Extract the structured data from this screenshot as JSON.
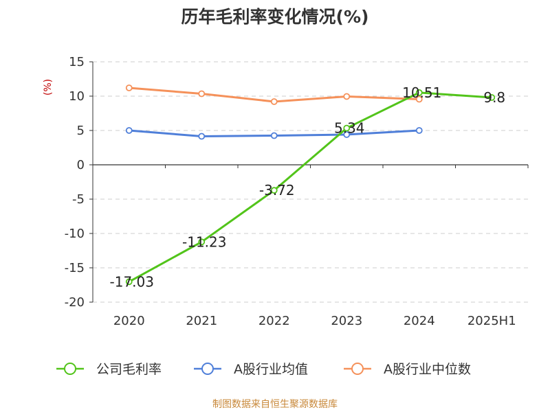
{
  "chart_data": {
    "type": "line",
    "title": "历年毛利率变化情况(%)",
    "ylabel": "(%)",
    "xlabel": "",
    "categories": [
      "2020",
      "2021",
      "2022",
      "2023",
      "2024",
      "2025H1"
    ],
    "ylim": [
      -20,
      15
    ],
    "yticks": [
      15,
      10,
      5,
      0,
      -5,
      -10,
      -15,
      -20
    ],
    "grid": true,
    "legend_position": "bottom",
    "series": [
      {
        "name": "公司毛利率",
        "color": "#52c41a",
        "values": [
          -17.03,
          -11.23,
          -3.72,
          5.34,
          10.51,
          9.8
        ],
        "labels": [
          "-17.03",
          "-11.23",
          "-3.72",
          "5.34",
          "10.51",
          "9.8"
        ]
      },
      {
        "name": "A股行业均值",
        "color": "#4f7fd9",
        "values": [
          5.0,
          4.15,
          4.25,
          4.4,
          5.0,
          null
        ]
      },
      {
        "name": "A股行业中位数",
        "color": "#f5915a",
        "values": [
          11.2,
          10.35,
          9.2,
          9.95,
          9.55,
          null
        ]
      }
    ],
    "source": "制图数据来自恒生聚源数据库"
  }
}
